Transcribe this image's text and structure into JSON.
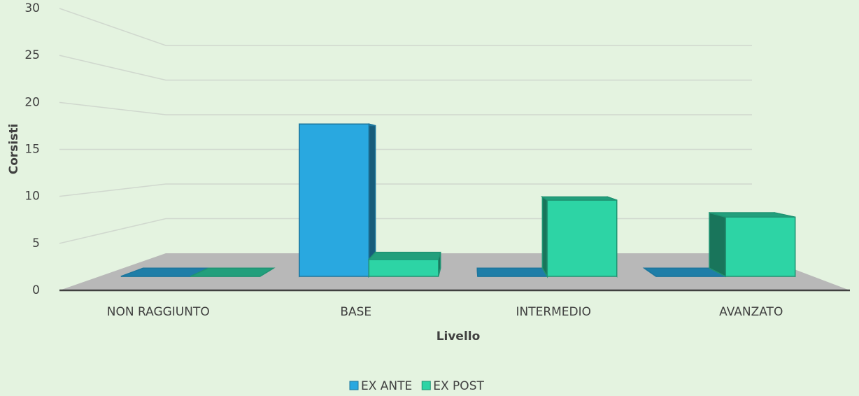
{
  "chart_data": {
    "type": "bar",
    "x_label": "Livello",
    "y_label": "Corsisti",
    "categories": [
      "NON RAGGIUNTO",
      "BASE",
      "INTERMEDIO",
      "AVANZATO"
    ],
    "series": [
      {
        "name": "EX ANTE",
        "color": "#29a8e0",
        "values": [
          0,
          18,
          0,
          0
        ]
      },
      {
        "name": "EX POST",
        "color": "#2dd4a5",
        "values": [
          0,
          2,
          9,
          7
        ]
      }
    ],
    "ylim": [
      0,
      30
    ],
    "yticks": [
      0,
      5,
      10,
      15,
      20,
      25,
      30
    ],
    "grid": true,
    "legend": "bottom"
  }
}
